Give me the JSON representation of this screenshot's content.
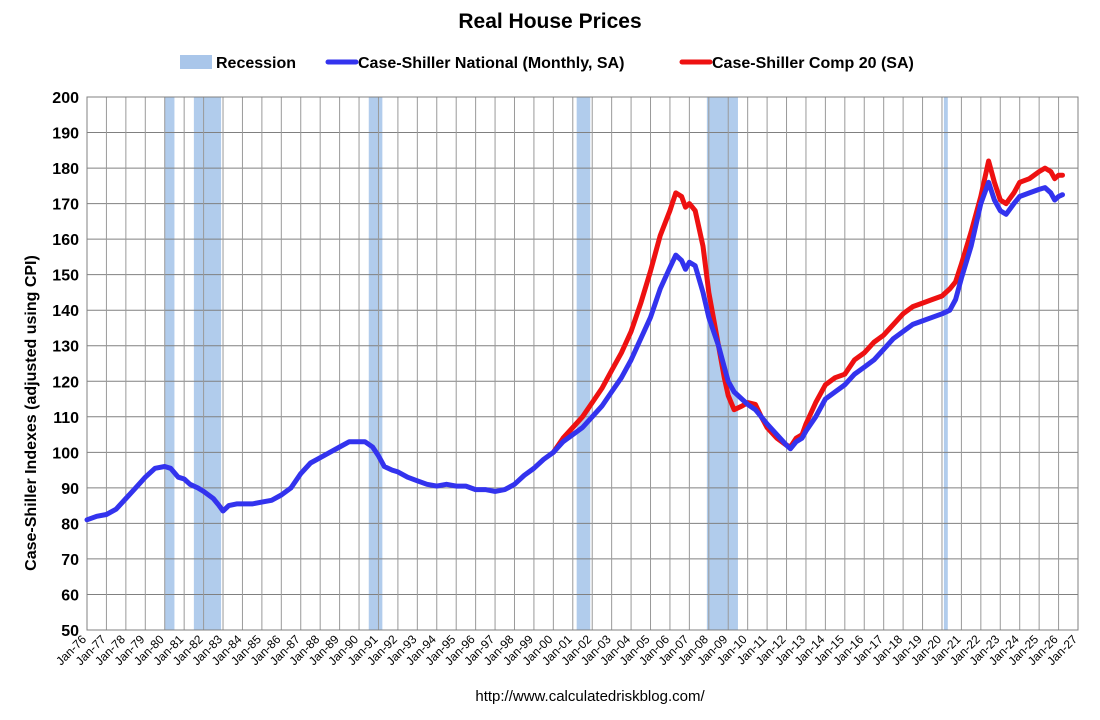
{
  "chart_data": {
    "type": "line",
    "title": "Real House Prices",
    "xlabel": "",
    "ylabel": "Case-Shiller Indexes (adjusted using CPI)",
    "source": "http://www.calculatedriskblog.com/",
    "ylim": [
      50,
      200
    ],
    "yticks": [
      50,
      60,
      70,
      80,
      90,
      100,
      110,
      120,
      130,
      140,
      150,
      160,
      170,
      180,
      190,
      200
    ],
    "xlim": [
      1976,
      2027
    ],
    "x_tick_labels": [
      "Jan-76",
      "Jan-77",
      "Jan-78",
      "Jan-79",
      "Jan-80",
      "Jan-81",
      "Jan-82",
      "Jan-83",
      "Jan-84",
      "Jan-85",
      "Jan-86",
      "Jan-87",
      "Jan-88",
      "Jan-89",
      "Jan-90",
      "Jan-91",
      "Jan-92",
      "Jan-93",
      "Jan-94",
      "Jan-95",
      "Jan-96",
      "Jan-97",
      "Jan-98",
      "Jan-99",
      "Jan-00",
      "Jan-01",
      "Jan-02",
      "Jan-03",
      "Jan-04",
      "Jan-05",
      "Jan-06",
      "Jan-07",
      "Jan-08",
      "Jan-09",
      "Jan-10",
      "Jan-11",
      "Jan-12",
      "Jan-13",
      "Jan-14",
      "Jan-15",
      "Jan-16",
      "Jan-17",
      "Jan-18",
      "Jan-19",
      "Jan-20",
      "Jan-21",
      "Jan-22",
      "Jan-23",
      "Jan-24",
      "Jan-25",
      "Jan-26",
      "Jan-27"
    ],
    "grid": true,
    "legend_position": "top",
    "legend": [
      {
        "label": "Recession",
        "color": "#a9c6ea",
        "kind": "band"
      },
      {
        "label": "Case-Shiller National (Monthly, SA)",
        "color": "#3333ee",
        "kind": "line"
      },
      {
        "label": "Case-Shiller Comp 20  (SA)",
        "color": "#ee1111",
        "kind": "line"
      }
    ],
    "recessions": [
      {
        "start": 1980.0,
        "end": 1980.5
      },
      {
        "start": 1981.5,
        "end": 1982.9
      },
      {
        "start": 1990.5,
        "end": 1991.2
      },
      {
        "start": 2001.2,
        "end": 2001.9
      },
      {
        "start": 2007.9,
        "end": 2009.5
      },
      {
        "start": 2020.1,
        "end": 2020.3
      }
    ],
    "series": [
      {
        "name": "Case-Shiller National (Monthly, SA)",
        "color": "#3333ee",
        "points": [
          [
            1976.0,
            81
          ],
          [
            1976.5,
            82
          ],
          [
            1977.0,
            82.5
          ],
          [
            1977.5,
            84
          ],
          [
            1978.0,
            87
          ],
          [
            1978.5,
            90
          ],
          [
            1979.0,
            93
          ],
          [
            1979.5,
            95.5
          ],
          [
            1980.0,
            96
          ],
          [
            1980.3,
            95.5
          ],
          [
            1980.7,
            93
          ],
          [
            1981.0,
            92.5
          ],
          [
            1981.3,
            91
          ],
          [
            1981.7,
            90
          ],
          [
            1982.0,
            89
          ],
          [
            1982.5,
            87
          ],
          [
            1982.8,
            85
          ],
          [
            1983.0,
            83.5
          ],
          [
            1983.3,
            85
          ],
          [
            1983.7,
            85.5
          ],
          [
            1984.0,
            85.5
          ],
          [
            1984.5,
            85.5
          ],
          [
            1985.0,
            86
          ],
          [
            1985.5,
            86.5
          ],
          [
            1986.0,
            88
          ],
          [
            1986.5,
            90
          ],
          [
            1987.0,
            94
          ],
          [
            1987.5,
            97
          ],
          [
            1988.0,
            98.5
          ],
          [
            1988.5,
            100
          ],
          [
            1989.0,
            101.5
          ],
          [
            1989.5,
            103
          ],
          [
            1990.0,
            103
          ],
          [
            1990.3,
            103
          ],
          [
            1990.7,
            101.5
          ],
          [
            1991.0,
            99
          ],
          [
            1991.3,
            96
          ],
          [
            1991.7,
            95
          ],
          [
            1992.0,
            94.5
          ],
          [
            1992.5,
            93
          ],
          [
            1993.0,
            92
          ],
          [
            1993.5,
            91
          ],
          [
            1994.0,
            90.5
          ],
          [
            1994.5,
            91
          ],
          [
            1995.0,
            90.5
          ],
          [
            1995.5,
            90.5
          ],
          [
            1996.0,
            89.5
          ],
          [
            1996.5,
            89.5
          ],
          [
            1997.0,
            89
          ],
          [
            1997.5,
            89.5
          ],
          [
            1998.0,
            91
          ],
          [
            1998.5,
            93.5
          ],
          [
            1999.0,
            95.5
          ],
          [
            1999.5,
            98
          ],
          [
            2000.0,
            100
          ],
          [
            2000.5,
            103
          ],
          [
            2001.0,
            105
          ],
          [
            2001.5,
            107
          ],
          [
            2002.0,
            110
          ],
          [
            2002.5,
            113
          ],
          [
            2003.0,
            117
          ],
          [
            2003.5,
            121
          ],
          [
            2004.0,
            126
          ],
          [
            2004.5,
            132
          ],
          [
            2005.0,
            138
          ],
          [
            2005.5,
            146
          ],
          [
            2006.0,
            152
          ],
          [
            2006.3,
            155.5
          ],
          [
            2006.6,
            154
          ],
          [
            2006.8,
            151.5
          ],
          [
            2007.0,
            153.5
          ],
          [
            2007.3,
            152.5
          ],
          [
            2007.7,
            145
          ],
          [
            2008.0,
            138
          ],
          [
            2008.5,
            130
          ],
          [
            2008.8,
            124
          ],
          [
            2009.0,
            120
          ],
          [
            2009.3,
            117
          ],
          [
            2009.7,
            115
          ],
          [
            2010.0,
            113.5
          ],
          [
            2010.4,
            112
          ],
          [
            2010.7,
            110
          ],
          [
            2011.0,
            108
          ],
          [
            2011.5,
            105
          ],
          [
            2012.0,
            102
          ],
          [
            2012.2,
            101
          ],
          [
            2012.5,
            103
          ],
          [
            2012.8,
            104
          ],
          [
            2013.0,
            106
          ],
          [
            2013.5,
            110
          ],
          [
            2014.0,
            115
          ],
          [
            2014.5,
            117
          ],
          [
            2015.0,
            119
          ],
          [
            2015.5,
            122
          ],
          [
            2016.0,
            124
          ],
          [
            2016.5,
            126
          ],
          [
            2017.0,
            129
          ],
          [
            2017.5,
            132
          ],
          [
            2018.0,
            134
          ],
          [
            2018.5,
            136
          ],
          [
            2019.0,
            137
          ],
          [
            2019.5,
            138
          ],
          [
            2020.0,
            139
          ],
          [
            2020.4,
            140
          ],
          [
            2020.7,
            143
          ],
          [
            2021.0,
            149
          ],
          [
            2021.5,
            158
          ],
          [
            2022.0,
            170
          ],
          [
            2022.4,
            176
          ],
          [
            2022.7,
            171
          ],
          [
            2023.0,
            168
          ],
          [
            2023.3,
            167
          ],
          [
            2023.7,
            170
          ],
          [
            2024.0,
            172
          ],
          [
            2024.5,
            173
          ],
          [
            2025.0,
            174
          ],
          [
            2025.3,
            174.5
          ],
          [
            2025.6,
            173
          ],
          [
            2025.8,
            171
          ],
          [
            2026.0,
            172
          ],
          [
            2026.2,
            172.5
          ]
        ]
      },
      {
        "name": "Case-Shiller Comp 20  (SA)",
        "color": "#ee1111",
        "points": [
          [
            2000.0,
            100
          ],
          [
            2000.5,
            104
          ],
          [
            2001.0,
            107
          ],
          [
            2001.5,
            110
          ],
          [
            2002.0,
            114
          ],
          [
            2002.5,
            118
          ],
          [
            2003.0,
            123
          ],
          [
            2003.5,
            128
          ],
          [
            2004.0,
            134
          ],
          [
            2004.5,
            142
          ],
          [
            2005.0,
            151
          ],
          [
            2005.5,
            161
          ],
          [
            2006.0,
            168
          ],
          [
            2006.3,
            173
          ],
          [
            2006.6,
            172
          ],
          [
            2006.8,
            169
          ],
          [
            2007.0,
            170
          ],
          [
            2007.3,
            168
          ],
          [
            2007.7,
            158
          ],
          [
            2008.0,
            145
          ],
          [
            2008.5,
            130
          ],
          [
            2008.8,
            121
          ],
          [
            2009.0,
            116
          ],
          [
            2009.3,
            112
          ],
          [
            2009.7,
            113
          ],
          [
            2010.0,
            114
          ],
          [
            2010.4,
            113.5
          ],
          [
            2010.7,
            110
          ],
          [
            2011.0,
            107
          ],
          [
            2011.5,
            104
          ],
          [
            2012.0,
            102
          ],
          [
            2012.2,
            101.5
          ],
          [
            2012.5,
            104
          ],
          [
            2012.8,
            105
          ],
          [
            2013.0,
            108
          ],
          [
            2013.5,
            114
          ],
          [
            2014.0,
            119
          ],
          [
            2014.5,
            121
          ],
          [
            2015.0,
            122
          ],
          [
            2015.5,
            126
          ],
          [
            2016.0,
            128
          ],
          [
            2016.5,
            131
          ],
          [
            2017.0,
            133
          ],
          [
            2017.5,
            136
          ],
          [
            2018.0,
            139
          ],
          [
            2018.5,
            141
          ],
          [
            2019.0,
            142
          ],
          [
            2019.5,
            143
          ],
          [
            2020.0,
            144
          ],
          [
            2020.4,
            146
          ],
          [
            2020.7,
            148
          ],
          [
            2021.0,
            153
          ],
          [
            2021.5,
            162
          ],
          [
            2022.0,
            172
          ],
          [
            2022.4,
            182
          ],
          [
            2022.7,
            176
          ],
          [
            2023.0,
            171
          ],
          [
            2023.3,
            170
          ],
          [
            2023.7,
            173
          ],
          [
            2024.0,
            176
          ],
          [
            2024.5,
            177
          ],
          [
            2025.0,
            179
          ],
          [
            2025.3,
            180
          ],
          [
            2025.6,
            179
          ],
          [
            2025.8,
            177
          ],
          [
            2026.0,
            178
          ],
          [
            2026.2,
            178
          ]
        ]
      }
    ]
  }
}
